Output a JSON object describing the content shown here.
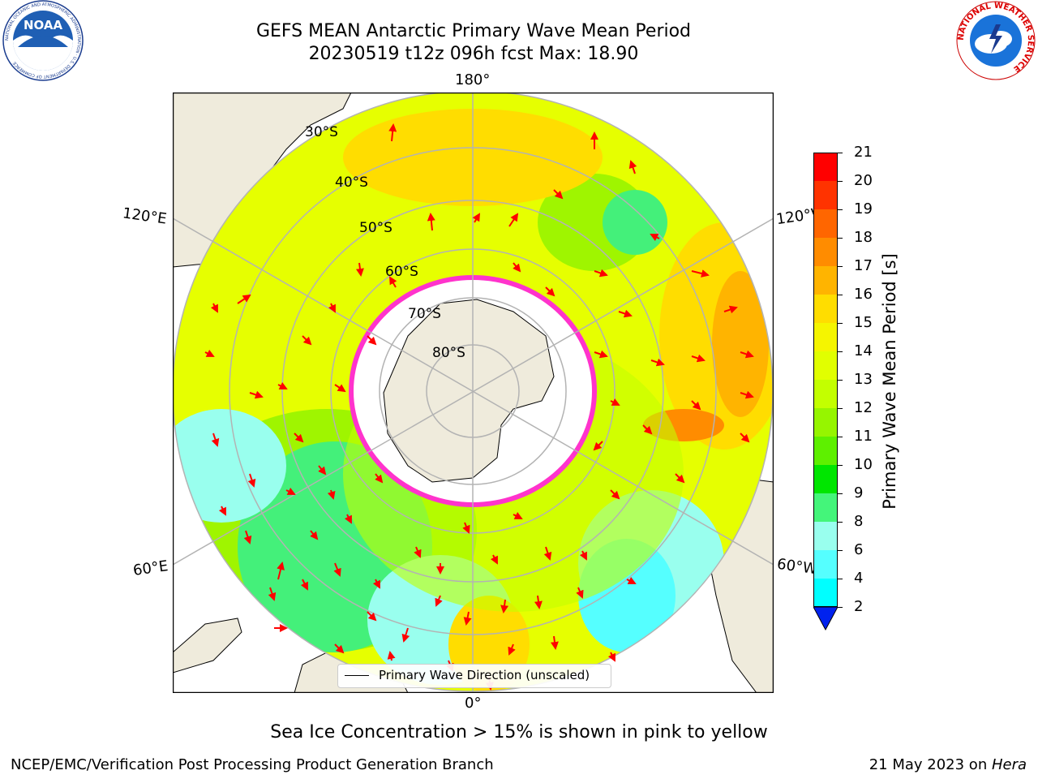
{
  "title": {
    "line1": "GEFS MEAN Antarctic Primary Wave Mean Period",
    "line2": "20230519 t12z 096h fcst   Max: 18.90"
  },
  "map": {
    "projection": "south polar stereographic",
    "longitude_labels": {
      "top": "180°",
      "bottom": "0°",
      "upper_left": "120°E",
      "upper_right": "120°W",
      "lower_left": "60°E",
      "lower_right": "60°W"
    },
    "latitude_labels": [
      "30°S",
      "40°S",
      "50°S",
      "60°S",
      "70°S",
      "80°S"
    ],
    "land_color": "#efebdc",
    "ice_edge_color": "#ff33cc",
    "arrow_color": "#ff0000",
    "legend_label": "Primary Wave Direction (unscaled)"
  },
  "colorbar": {
    "title": "Primary Wave Mean Period [s]",
    "ticks": [
      "21",
      "20",
      "19",
      "18",
      "17",
      "16",
      "15",
      "14",
      "13",
      "12",
      "11",
      "10",
      "9",
      "8",
      "6",
      "4",
      "2"
    ],
    "colors_top_to_bottom": [
      "#ff0000",
      "#ff3300",
      "#ff6600",
      "#ff8c00",
      "#ffb400",
      "#ffdd00",
      "#f5f500",
      "#e1ff00",
      "#c3ff00",
      "#96f500",
      "#5ef000",
      "#00e600",
      "#44f57a",
      "#99ffee",
      "#55ffff",
      "#00ffff",
      "#00ccff",
      "#0077ff"
    ],
    "extend_color": "#0022ee"
  },
  "note": "Sea Ice Concentration > 15% is shown in pink to yellow",
  "footer": {
    "left": "NCEP/EMC/Verification Post Processing Product Generation Branch",
    "right_prefix": "21 May 2023 on ",
    "right_machine": "Hera"
  },
  "logos": {
    "left_text": "NOAA",
    "left_ring_text": "NATIONAL OCEANIC AND ATMOSPHERIC ADMINISTRATION · U.S. DEPARTMENT OF COMMERCE",
    "right_ring_text": "NATIONAL WEATHER SERVICE"
  }
}
